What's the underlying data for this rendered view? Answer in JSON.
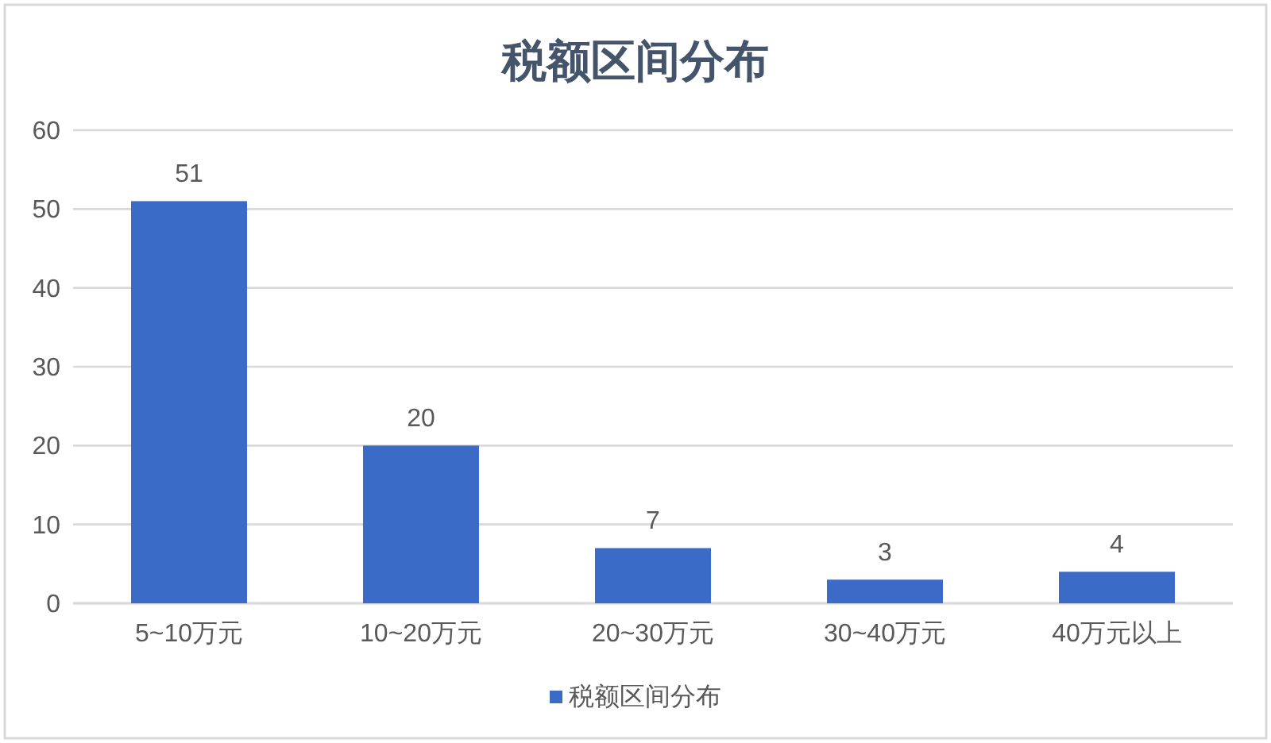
{
  "chart_data": {
    "type": "bar",
    "title": "税额区间分布",
    "categories": [
      "5~10万元",
      "10~20万元",
      "20~30万元",
      "30~40万元",
      "40万元以上"
    ],
    "series": [
      {
        "name": "税额区间分布",
        "color": "#3b6bc6",
        "values": [
          51,
          20,
          7,
          3,
          4
        ]
      }
    ],
    "ylim": [
      0,
      60
    ],
    "yticks": [
      0,
      10,
      20,
      30,
      40,
      50,
      60
    ],
    "grid": "y",
    "legend": "bottom",
    "data_labels": true
  }
}
